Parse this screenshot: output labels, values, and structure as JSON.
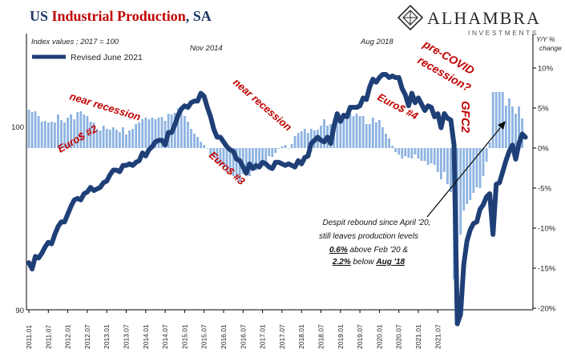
{
  "title": {
    "part1": "US ",
    "part2": "Industrial Production",
    "part3": ", SA"
  },
  "logo": {
    "name": "Alhambra",
    "sub": "INVESTMENTS"
  },
  "colors": {
    "title_blue": "#1f3864",
    "title_red": "#c00000",
    "line": "#1f3f77",
    "bars": "#8db3e2",
    "annotation_red": "#c00000",
    "arrow": "#111111"
  },
  "chart_data": {
    "type": "line",
    "subtitle": "Index values ; 2017 = 100",
    "y2_label": "Y/Y % change",
    "legend": {
      "label": "Revised June 2021",
      "placement": "top-left"
    },
    "left_axis": {
      "range": [
        90,
        107.6
      ],
      "ticks": [
        "90",
        "100"
      ]
    },
    "right_axis": {
      "range": [
        -20,
        15
      ],
      "ticks": [
        "-20%",
        "-15%",
        "-10%",
        "-5%",
        "0%",
        "5%",
        "10%"
      ]
    },
    "x_ticks": [
      "2011.01",
      "2011.07",
      "2012.01",
      "2012.07",
      "2013.01",
      "2013.07",
      "2014.01",
      "2014.07",
      "2015.01",
      "2015.07",
      "2016.01",
      "2016.07",
      "2017.01",
      "2017.07",
      "2018.01",
      "2018.07",
      "2019.01",
      "2019.07",
      "2020.01",
      "2020.07",
      "2021.01",
      "2021.07"
    ],
    "series": [
      {
        "name": "Revised June 2021",
        "type": "line",
        "start": "2011.01",
        "values": [
          93.0,
          92.6,
          93.4,
          93.3,
          93.6,
          94.0,
          94.3,
          94.2,
          94.8,
          95.3,
          95.6,
          95.6,
          96.1,
          96.6,
          97.0,
          97.1,
          97.0,
          97.4,
          97.5,
          97.8,
          97.6,
          97.7,
          97.8,
          98.1,
          98.2,
          98.6,
          98.9,
          98.9,
          98.8,
          99.2,
          99.2,
          99.3,
          99.2,
          99.4,
          99.5,
          100.0,
          99.8,
          100.2,
          100.4,
          100.7,
          100.8,
          100.8,
          100.5,
          101.3,
          101.3,
          101.8,
          102.4,
          102.8,
          103.0,
          102.9,
          103.2,
          103.3,
          103.3,
          103.8,
          103.6,
          102.9,
          102.3,
          101.5,
          101.0,
          101.0,
          100.7,
          100.4,
          100.2,
          100.1,
          99.6,
          99.5,
          99.1,
          98.7,
          99.3,
          99.0,
          99.2,
          99.1,
          99.4,
          99.3,
          99.1,
          99.0,
          99.4,
          99.4,
          99.3,
          99.2,
          99.3,
          99.2,
          99.1,
          99.5,
          99.3,
          99.7,
          99.8,
          100.6,
          100.8,
          101.0,
          100.8,
          100.7,
          101.0,
          100.6,
          101.7,
          102.5,
          102.0,
          102.4,
          102.3,
          102.9,
          102.9,
          102.9,
          103.0,
          103.5,
          103.4,
          104.2,
          104.7,
          104.5,
          104.8,
          105.0,
          105.0,
          104.8,
          104.9,
          104.8,
          104.8,
          104.1,
          103.7,
          103.0,
          103.8,
          103.2,
          103.5,
          103.1,
          102.7,
          103.0,
          102.9,
          102.3,
          102.5,
          101.6,
          102.5,
          102.2,
          102.1,
          100.5,
          89.1,
          89.7,
          92.9,
          94.4,
          95.1,
          95.5,
          95.6,
          96.4,
          96.7,
          97.2,
          97.4,
          94.8,
          98.0,
          98.1,
          98.8,
          99.5,
          100.1,
          100.5,
          99.6,
          100.6,
          101.2,
          101.0
        ]
      },
      {
        "name": "Y/Y % change",
        "type": "bar",
        "axis": "right",
        "start": "2011.01",
        "values": [
          4.8,
          4.5,
          4.6,
          4.0,
          3.3,
          3.4,
          3.2,
          3.3,
          3.2,
          4.2,
          3.5,
          3.2,
          3.8,
          4.2,
          3.6,
          4.5,
          4.6,
          4.2,
          4.0,
          3.3,
          3.2,
          2.4,
          2.2,
          2.8,
          2.4,
          2.3,
          2.6,
          2.3,
          2.0,
          2.6,
          1.7,
          2.2,
          2.4,
          3.0,
          3.2,
          3.6,
          3.8,
          3.6,
          3.8,
          3.6,
          3.8,
          3.9,
          3.4,
          4.3,
          4.2,
          4.4,
          5.0,
          4.3,
          4.0,
          3.3,
          2.4,
          1.8,
          1.4,
          0.8,
          0.4,
          0.0,
          -0.8,
          -1.2,
          -1.7,
          -2.0,
          -2.4,
          -3.0,
          -3.0,
          -3.5,
          -3.8,
          -4.2,
          -3.2,
          -2.8,
          -3.5,
          -2.6,
          -2.8,
          -2.4,
          -1.8,
          -1.8,
          -1.0,
          -1.1,
          -0.6,
          -0.1,
          0.2,
          0.4,
          0.0,
          0.5,
          1.5,
          1.9,
          2.1,
          2.4,
          1.9,
          2.4,
          2.2,
          2.3,
          2.8,
          3.6,
          2.8,
          3.0,
          3.6,
          3.4,
          3.2,
          4.2,
          3.6,
          4.3,
          4.0,
          4.3,
          4.0,
          4.0,
          3.0,
          3.0,
          3.8,
          3.2,
          3.5,
          2.6,
          1.8,
          1.2,
          0.3,
          -0.5,
          -0.8,
          -1.3,
          -1.0,
          -1.2,
          -1.3,
          -0.8,
          -1.3,
          -1.6,
          -1.6,
          -2.1,
          -1.9,
          -2.1,
          -3.0,
          -3.9,
          -3.0,
          -4.5,
          -5.5,
          -16.4,
          -15.8,
          -10.8,
          -7.8,
          -7.0,
          -6.5,
          -5.6,
          -4.9,
          -5.0,
          -3.5,
          -1.7,
          0.7,
          7.0,
          7.0,
          7.0,
          7.0,
          5.3,
          6.2,
          5.2,
          4.3,
          5.2,
          3.7
        ]
      }
    ],
    "annotations": {
      "nov2014": "Nov 2014",
      "aug2018": "Aug 2018",
      "near_recession_1": "near recession",
      "near_recession_2": "near recession",
      "euro2": "Euro$ #2",
      "euro3": "Euro$ #3",
      "euro4": "Euro$ #4",
      "precovid_1": "pre-COVID",
      "precovid_2": "recession?",
      "gfc2": "GFC2",
      "note_line1": "Despit rebound  since April '20,",
      "note_line2": "still leaves production levels",
      "note_line3_a": "0.6%",
      "note_line3_b": " above Feb '20 &",
      "note_line4_a": "2.2%",
      "note_line4_b": " below ",
      "note_line4_c": "Aug '18"
    }
  }
}
